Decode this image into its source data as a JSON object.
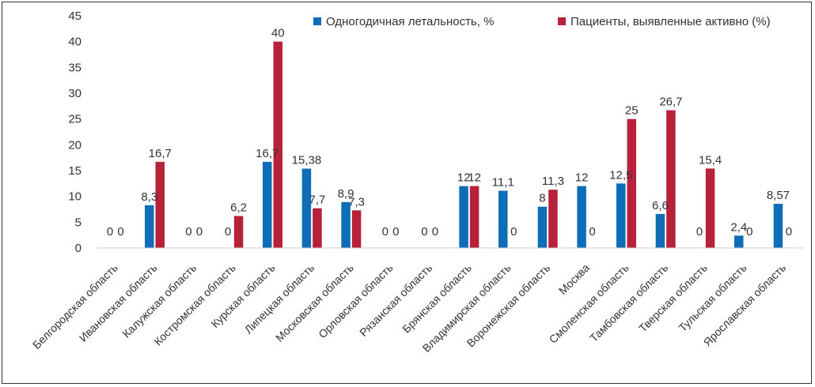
{
  "chart_data": {
    "type": "bar",
    "title": "",
    "xlabel": "",
    "ylabel": "",
    "ylim": [
      0,
      45
    ],
    "yticks": [
      0,
      5,
      10,
      15,
      20,
      25,
      30,
      35,
      40,
      45
    ],
    "grid": false,
    "legend_position": "top-right",
    "categories": [
      "Белгородская область",
      "Ивановская область",
      "Калужская область",
      "Костромская область",
      "Курская область",
      "Липецкая область",
      "Московская область",
      "Орловская область",
      "Рязанская область",
      "Брянская область",
      "Владимирская область",
      "Воронежская область",
      "Москва",
      "Смоленская область",
      "Тамбовская область",
      "Тверская область",
      "Тульская область",
      "Ярославская область"
    ],
    "series": [
      {
        "name": "Одногодичная летальность, %",
        "color": "#0E6DB6",
        "values": [
          0,
          8.3,
          0,
          0,
          16.7,
          15.38,
          8.9,
          0,
          0,
          12,
          11.1,
          8,
          12,
          12.5,
          6.6,
          0,
          2.4,
          8.57
        ],
        "labels": [
          "0",
          "8,3",
          "0",
          "0",
          "16,7",
          "15,38",
          "8,9",
          "0",
          "0",
          "12",
          "11,1",
          "8",
          "12",
          "12,5",
          "6,6",
          "0",
          "2,4",
          "8,57"
        ]
      },
      {
        "name": "Пациенты, выявленные активно (%)",
        "color": "#B7213A",
        "values": [
          0,
          16.7,
          0,
          6.2,
          40,
          7.7,
          7.3,
          0,
          0,
          12,
          0,
          11.3,
          0,
          25,
          26.7,
          15.4,
          0,
          0
        ],
        "labels": [
          "0",
          "16,7",
          "0",
          "6,2",
          "40",
          "7,7",
          "7,3",
          "0",
          "0",
          "12",
          "0",
          "11,3",
          "0",
          "25",
          "26,7",
          "15,4",
          "0",
          "0"
        ]
      }
    ]
  }
}
